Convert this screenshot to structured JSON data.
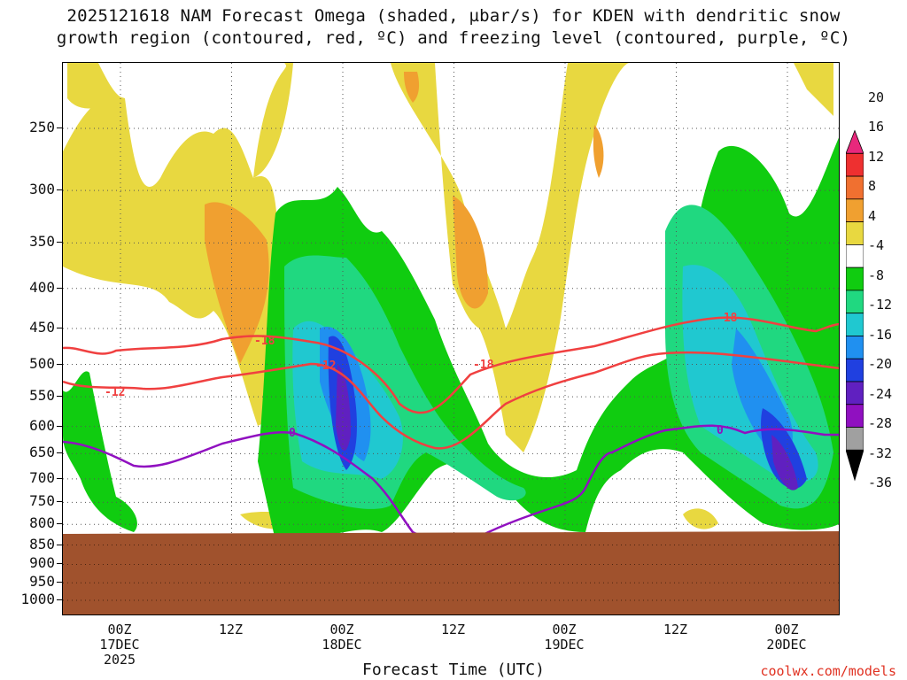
{
  "title": {
    "line1": "2025121618 NAM Forecast Omega (shaded, µbar/s) for KDEN with dendritic snow",
    "line2": "growth region (contoured, red, ºC) and freezing level (contoured, purple, ºC)"
  },
  "credit": "coolwx.com/models",
  "chart_data": {
    "type": "heatmap",
    "title": "2025121618 NAM Forecast Omega (shaded, µbar/s) for KDEN with dendritic snow growth region (contoured, red, ºC) and freezing level (contoured, purple, ºC)",
    "xlabel": "Forecast Time (UTC)",
    "ylabel": "",
    "y_scale": "pressure (hPa, log-p, inverted)",
    "y_ticks": [
      "250",
      "300",
      "350",
      "400",
      "450",
      "500",
      "550",
      "600",
      "650",
      "700",
      "750",
      "800",
      "850",
      "900",
      "950",
      "1000"
    ],
    "x_ticks": [
      {
        "label": "00Z",
        "sub": [
          "17DEC",
          "2025"
        ]
      },
      {
        "label": "12Z",
        "sub": []
      },
      {
        "label": "00Z",
        "sub": [
          "18DEC"
        ]
      },
      {
        "label": "12Z",
        "sub": []
      },
      {
        "label": "00Z",
        "sub": [
          "19DEC"
        ]
      },
      {
        "label": "12Z",
        "sub": []
      },
      {
        "label": "00Z",
        "sub": [
          "20DEC"
        ]
      }
    ],
    "colorbar": {
      "labels": [
        "20",
        "16",
        "12",
        "8",
        "4",
        "-4",
        "-8",
        "-12",
        "-16",
        "-20",
        "-24",
        "-28",
        "-32",
        "-36"
      ],
      "colors": [
        "#e8287c",
        "#ee3030",
        "#f07030",
        "#f0a030",
        "#e8d840",
        "#ffffff",
        "#10cc10",
        "#20d880",
        "#20c8d0",
        "#2090f0",
        "#2040e0",
        "#6020c0",
        "#9010c0",
        "#a0a0a0",
        "#000000"
      ]
    },
    "contours": [
      {
        "name": "-18",
        "color": "#f04040"
      },
      {
        "name": "-12",
        "color": "#f04040"
      },
      {
        "name": "0",
        "color": "#9010c0"
      }
    ],
    "grid": true
  }
}
